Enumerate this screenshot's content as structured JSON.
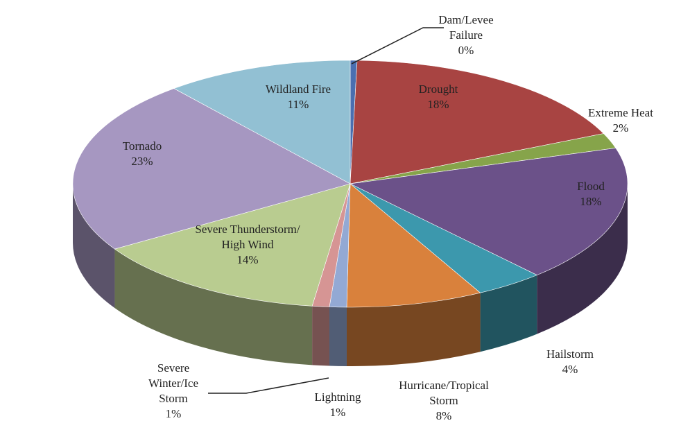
{
  "chart_data": {
    "type": "pie3d",
    "categories": [
      "Dam/Levee Failure",
      "Drought",
      "Extreme Heat",
      "Flood",
      "Hailstorm",
      "Hurricane/Tropical Storm",
      "Lightning",
      "Severe Winter/Ice Storm",
      "Severe Thunderstorm/ High Wind",
      "Tornado",
      "Wildland Fire"
    ],
    "values": [
      0.4,
      18,
      2,
      18,
      4,
      8,
      1,
      1,
      14,
      23,
      11
    ],
    "value_labels": [
      "0%",
      "18%",
      "2%",
      "18%",
      "4%",
      "8%",
      "1%",
      "1%",
      "14%",
      "23%",
      "11%"
    ],
    "colors": [
      "#4a6fb0",
      "#a84442",
      "#86a44a",
      "#6b5189",
      "#3c98ad",
      "#d9813c",
      "#93a9d4",
      "#d69594",
      "#b9cc90",
      "#a697c1",
      "#92c0d3"
    ]
  }
}
